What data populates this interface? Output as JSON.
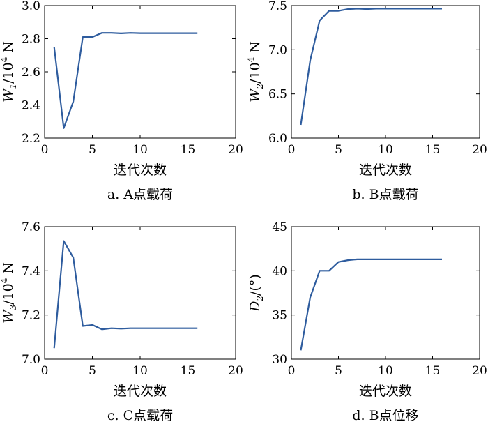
{
  "chart_data": [
    {
      "type": "line",
      "y_var": "W",
      "y_sub": "1",
      "y_rest": "/10",
      "y_sup": "4",
      "y_unit": " N",
      "xlabel": "迭代次数",
      "caption": "a. A点载荷",
      "xlim": [
        0,
        20
      ],
      "ylim": [
        2.2,
        3.0
      ],
      "xticks": [
        "0",
        "5",
        "10",
        "15",
        "20"
      ],
      "yticks": [
        "2.2",
        "2.4",
        "2.6",
        "2.8",
        "3.0"
      ],
      "x": [
        1,
        2,
        3,
        4,
        5,
        6,
        7,
        8,
        9,
        10,
        11,
        12,
        13,
        14,
        15,
        16
      ],
      "y": [
        2.75,
        2.26,
        2.42,
        2.81,
        2.81,
        2.835,
        2.835,
        2.832,
        2.835,
        2.833,
        2.833,
        2.833,
        2.833,
        2.833,
        2.833,
        2.833
      ],
      "color": "#2e5c9e"
    },
    {
      "type": "line",
      "y_var": "W",
      "y_sub": "2",
      "y_rest": "/10",
      "y_sup": "4",
      "y_unit": " N",
      "xlabel": "迭代次数",
      "caption": "b. B点载荷",
      "xlim": [
        0,
        20
      ],
      "ylim": [
        6.0,
        7.5
      ],
      "xticks": [
        "0",
        "5",
        "10",
        "15",
        "20"
      ],
      "yticks": [
        "6.0",
        "6.5",
        "7.0",
        "7.5"
      ],
      "x": [
        1,
        2,
        3,
        4,
        5,
        6,
        7,
        8,
        9,
        10,
        11,
        12,
        13,
        14,
        15,
        16
      ],
      "y": [
        6.15,
        6.88,
        7.33,
        7.44,
        7.44,
        7.46,
        7.465,
        7.46,
        7.465,
        7.465,
        7.465,
        7.465,
        7.465,
        7.465,
        7.465,
        7.465
      ],
      "color": "#2e5c9e"
    },
    {
      "type": "line",
      "y_var": "W",
      "y_sub": "3",
      "y_rest": "/10",
      "y_sup": "4",
      "y_unit": " N",
      "xlabel": "迭代次数",
      "caption": "c. C点载荷",
      "xlim": [
        0,
        20
      ],
      "ylim": [
        7.0,
        7.6
      ],
      "xticks": [
        "0",
        "5",
        "10",
        "15",
        "20"
      ],
      "yticks": [
        "7.0",
        "7.2",
        "7.4",
        "7.6"
      ],
      "x": [
        1,
        2,
        3,
        4,
        5,
        6,
        7,
        8,
        9,
        10,
        11,
        12,
        13,
        14,
        15,
        16
      ],
      "y": [
        7.05,
        7.535,
        7.46,
        7.15,
        7.155,
        7.135,
        7.14,
        7.138,
        7.14,
        7.14,
        7.14,
        7.14,
        7.14,
        7.14,
        7.14,
        7.14
      ],
      "color": "#2e5c9e"
    },
    {
      "type": "line",
      "y_var": "D",
      "y_sub": "2",
      "y_rest": "/(°)",
      "y_sup": "",
      "y_unit": "",
      "xlabel": "迭代次数",
      "caption": "d. B点位移",
      "xlim": [
        0,
        20
      ],
      "ylim": [
        30,
        45
      ],
      "xticks": [
        "0",
        "5",
        "10",
        "15",
        "20"
      ],
      "yticks": [
        "30",
        "35",
        "40",
        "45"
      ],
      "x": [
        1,
        2,
        3,
        4,
        5,
        6,
        7,
        8,
        9,
        10,
        11,
        12,
        13,
        14,
        15,
        16
      ],
      "y": [
        31.0,
        37.0,
        40.0,
        40.0,
        41.0,
        41.2,
        41.3,
        41.3,
        41.3,
        41.3,
        41.3,
        41.3,
        41.3,
        41.3,
        41.3,
        41.3
      ],
      "color": "#2e5c9e"
    }
  ]
}
